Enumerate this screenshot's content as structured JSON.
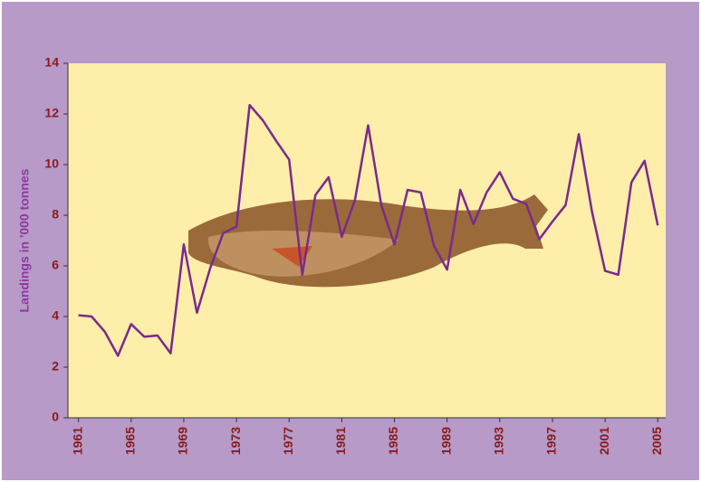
{
  "chart_data": {
    "type": "line",
    "y_label": "Landings in '000 tonnes",
    "x": [
      1961,
      1962,
      1963,
      1964,
      1965,
      1966,
      1967,
      1968,
      1969,
      1970,
      1971,
      1972,
      1973,
      1974,
      1975,
      1976,
      1977,
      1978,
      1979,
      1980,
      1981,
      1982,
      1983,
      1984,
      1985,
      1986,
      1987,
      1988,
      1989,
      1990,
      1991,
      1992,
      1993,
      1994,
      1995,
      1996,
      1997,
      1998,
      1999,
      2000,
      2001,
      2002,
      2003,
      2004,
      2005
    ],
    "series": [
      {
        "color": "#7b2a8c",
        "values": [
          4.05,
          4.0,
          3.4,
          2.45,
          3.7,
          3.2,
          3.25,
          2.55,
          6.85,
          4.15,
          5.9,
          7.3,
          7.55,
          12.35,
          11.75,
          10.95,
          10.2,
          5.65,
          8.8,
          9.5,
          7.15,
          8.6,
          11.55,
          8.4,
          6.85,
          9.0,
          8.9,
          6.8,
          5.85,
          9.0,
          7.65,
          8.9,
          9.7,
          8.65,
          8.45,
          7.05,
          7.75,
          8.4,
          11.2,
          8.15,
          5.8,
          5.65,
          9.3,
          10.15,
          7.6
        ]
      }
    ],
    "xlim": [
      1960.2,
      2005.6
    ],
    "xticks": [
      1961,
      1965,
      1969,
      1973,
      1977,
      1981,
      1985,
      1989,
      1993,
      1997,
      2001,
      2005
    ],
    "ylim": [
      0,
      14
    ],
    "yticks": [
      0,
      2,
      4,
      6,
      8,
      10,
      12,
      14
    ]
  }
}
